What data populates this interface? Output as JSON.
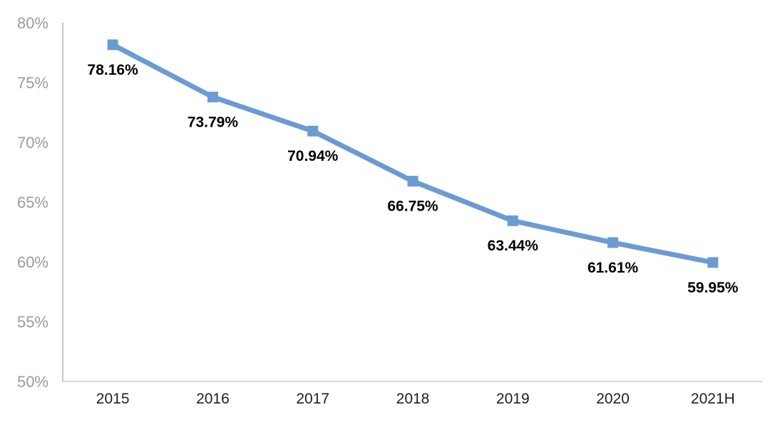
{
  "page": {
    "background_color": "#FFFFFF"
  },
  "chart_data": {
    "type": "line",
    "title": "",
    "xlabel": "",
    "ylabel": "",
    "categories": [
      "2015",
      "2016",
      "2017",
      "2018",
      "2019",
      "2020",
      "2021H"
    ],
    "values": [
      78.16,
      73.79,
      70.94,
      66.75,
      63.44,
      61.61,
      59.95
    ],
    "point_labels": [
      "78.16%",
      "73.79%",
      "70.94%",
      "66.75%",
      "63.44%",
      "61.61%",
      "59.95%"
    ],
    "ylim": [
      50,
      80
    ],
    "y_tick_values": [
      50,
      55,
      60,
      65,
      70,
      75,
      80
    ],
    "y_tick_labels": [
      "50%",
      "55%",
      "60%",
      "65%",
      "70%",
      "75%",
      "80%"
    ],
    "grid": false,
    "legend": false,
    "marker_shape": "square",
    "colors": {
      "line": "#6A9BD2",
      "marker": "#6A9BD2",
      "point_label_text": "#000000",
      "y_tick_text": "#9B9B9B",
      "x_tick_text": "#212121",
      "axis_line_vertical": "#C4C4C4",
      "axis_line_horizontal": "#D9D9D9"
    }
  }
}
